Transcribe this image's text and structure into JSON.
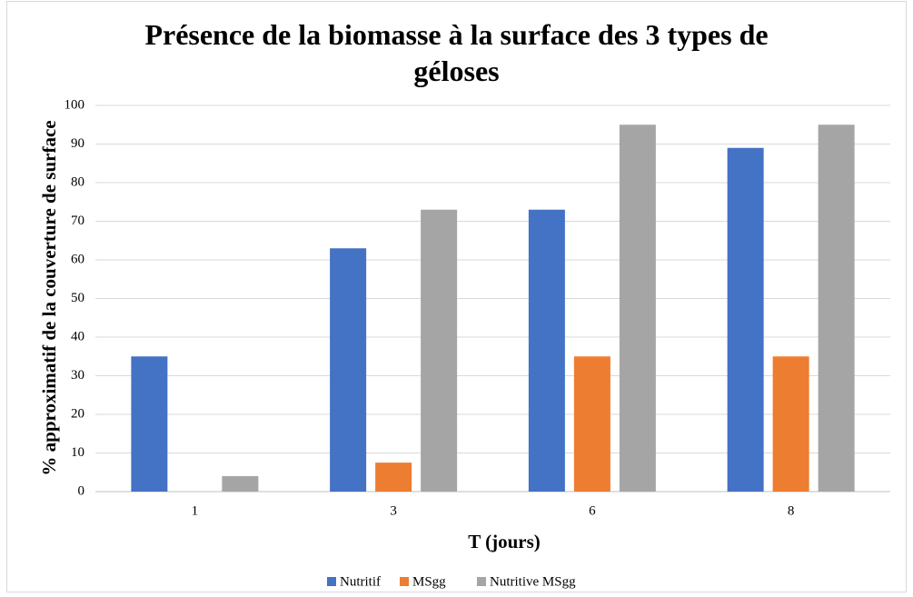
{
  "chart_data": {
    "type": "bar",
    "title": "Présence de la biomasse à la surface des 3 types de géloses",
    "xlabel": "T (jours)",
    "ylabel": "% approximatif de la couverture de surface",
    "categories": [
      "1",
      "3",
      "6",
      "8"
    ],
    "series": [
      {
        "name": "Nutritif",
        "color": "#4472c4",
        "values": [
          35,
          63,
          73,
          89
        ]
      },
      {
        "name": "MSgg",
        "color": "#ed7d31",
        "values": [
          0,
          7.5,
          35,
          35
        ]
      },
      {
        "name": "Nutritive MSgg",
        "color": "#a5a5a5",
        "values": [
          4,
          73,
          95,
          95
        ]
      }
    ],
    "ylim": [
      0,
      100
    ],
    "yticks": [
      0,
      10,
      20,
      30,
      40,
      50,
      60,
      70,
      80,
      90,
      100
    ],
    "grid": true,
    "legend": "bottom"
  }
}
